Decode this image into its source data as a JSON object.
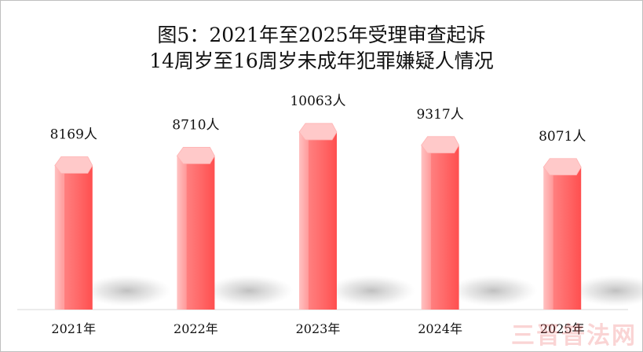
{
  "chart_data": {
    "type": "bar",
    "title": "图5：2021年至2025年受理审查起诉",
    "subtitle": "14周岁至16周岁未成年犯罪嫌疑人情况",
    "categories": [
      "2021年",
      "2022年",
      "2023年",
      "2024年",
      "2025年"
    ],
    "values": [
      8169,
      8710,
      10063,
      9317,
      8071
    ],
    "data_labels": [
      "8169人",
      "8710人",
      "10063人",
      "9317人",
      "8071人"
    ],
    "ylim": [
      0,
      10600
    ],
    "grid": false,
    "legend": "none",
    "colors": {
      "bar_front": "#ff6b6b",
      "bar_side": "#ffb1b1",
      "bar_top": "#ffc9c9"
    }
  },
  "watermark": "三晋普法网"
}
